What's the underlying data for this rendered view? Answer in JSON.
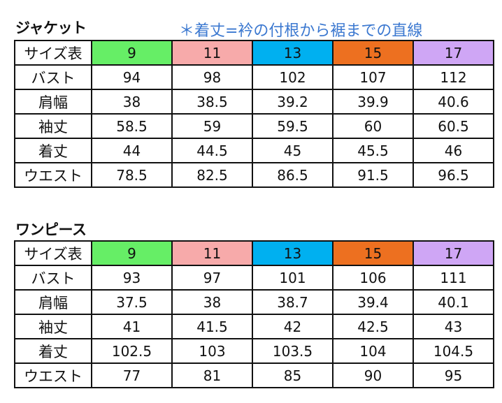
{
  "colors": {
    "size_9": "#66ee66",
    "size_11": "#f7aaaa",
    "size_13": "#00b0f0",
    "size_15": "#ed7020",
    "size_17": "#cfa6f5",
    "note": "#3b78d0"
  },
  "jacket": {
    "title": "ジャケット",
    "note": "＊着丈=衿の付根から裾までの直線",
    "header": {
      "label": "サイズ表",
      "sizes": [
        "9",
        "11",
        "13",
        "15",
        "17"
      ]
    },
    "rows": [
      {
        "label": "バスト",
        "values": [
          "94",
          "98",
          "102",
          "107",
          "112"
        ]
      },
      {
        "label": "肩幅",
        "values": [
          "38",
          "38.5",
          "39.2",
          "39.9",
          "40.6"
        ]
      },
      {
        "label": "袖丈",
        "values": [
          "58.5",
          "59",
          "59.5",
          "60",
          "60.5"
        ]
      },
      {
        "label": "着丈",
        "values": [
          "44",
          "44.5",
          "45",
          "45.5",
          "46"
        ]
      },
      {
        "label": "ウエスト",
        "values": [
          "78.5",
          "82.5",
          "86.5",
          "91.5",
          "96.5"
        ]
      }
    ]
  },
  "dress": {
    "title": "ワンピース",
    "header": {
      "label": "サイズ表",
      "sizes": [
        "9",
        "11",
        "13",
        "15",
        "17"
      ]
    },
    "rows": [
      {
        "label": "バスト",
        "values": [
          "93",
          "97",
          "101",
          "106",
          "111"
        ]
      },
      {
        "label": "肩幅",
        "values": [
          "37.5",
          "38",
          "38.7",
          "39.4",
          "40.1"
        ]
      },
      {
        "label": "袖丈",
        "values": [
          "41",
          "41.5",
          "42",
          "42.5",
          "43"
        ]
      },
      {
        "label": "着丈",
        "values": [
          "102.5",
          "103",
          "103.5",
          "104",
          "104.5"
        ]
      },
      {
        "label": "ウエスト",
        "values": [
          "77",
          "81",
          "85",
          "90",
          "95"
        ]
      }
    ]
  }
}
